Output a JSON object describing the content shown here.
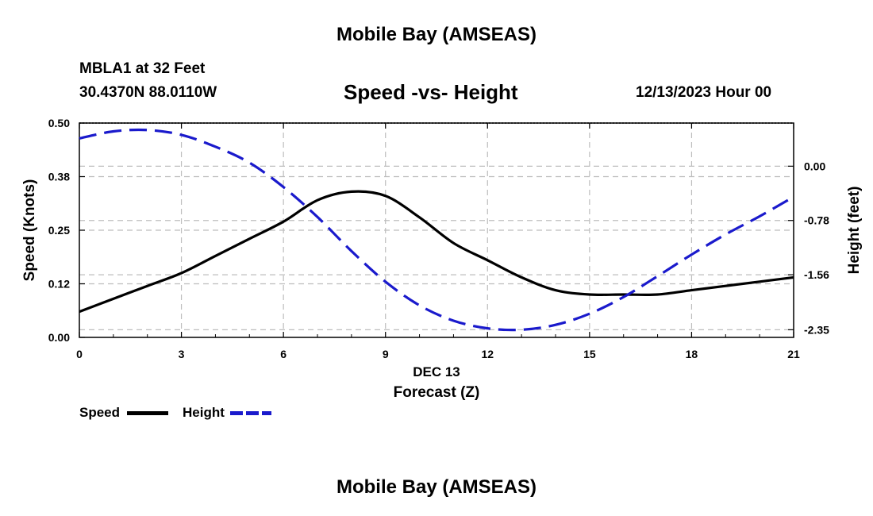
{
  "header": {
    "main_title": "Mobile Bay (AMSEAS)",
    "station": "MBLA1 at 32 Feet",
    "coords": "30.4370N  88.0110W",
    "chart_title": "Speed -vs- Height",
    "datetime": "12/13/2023 Hour 00"
  },
  "footer": {
    "title": "Mobile Bay (AMSEAS)"
  },
  "legend": {
    "items": [
      {
        "label": "Speed",
        "color": "#000000"
      },
      {
        "label": "Height",
        "color": "#1a1acc"
      }
    ]
  },
  "chart_data": {
    "type": "line",
    "title": "Speed -vs- Height",
    "xlabel": "Forecast (Z)",
    "xsublabel": "DEC 13",
    "ylabel": "Speed (Knots)",
    "y2label": "Height (feet)",
    "xlim": [
      0,
      21
    ],
    "xticks": [
      0,
      3,
      6,
      9,
      12,
      15,
      18,
      21
    ],
    "xtick_labels": [
      "0",
      "3",
      "6",
      "9",
      "12",
      "15",
      "18",
      "21"
    ],
    "ylim": [
      0,
      0.5
    ],
    "yticks": [
      0.0,
      0.125,
      0.25,
      0.375,
      0.5
    ],
    "ytick_labels": [
      "0.00",
      "0.12",
      "0.25",
      "0.38",
      "0.50"
    ],
    "y2lim": [
      -2.46,
      0.62
    ],
    "y2ticks": [
      0.0,
      -0.78,
      -1.56,
      -2.35
    ],
    "y2tick_labels": [
      "0.00",
      "-0.78",
      "-1.56",
      "-2.35"
    ],
    "grid": true,
    "series": [
      {
        "name": "Speed",
        "axis": "left",
        "style": "solid",
        "color": "#000000",
        "x": [
          0,
          1,
          2,
          3,
          4,
          5,
          6,
          7,
          8,
          9,
          10,
          11,
          12,
          13,
          14,
          15,
          16,
          17,
          18,
          19,
          20,
          21
        ],
        "values": [
          0.06,
          0.09,
          0.12,
          0.15,
          0.19,
          0.23,
          0.27,
          0.32,
          0.34,
          0.33,
          0.28,
          0.22,
          0.18,
          0.14,
          0.11,
          0.1,
          0.1,
          0.1,
          0.11,
          0.12,
          0.13,
          0.14
        ]
      },
      {
        "name": "Height",
        "axis": "right",
        "style": "dashed",
        "color": "#1a1acc",
        "x": [
          0,
          1,
          2,
          3,
          4,
          5,
          6,
          7,
          8,
          9,
          10,
          11,
          12,
          13,
          14,
          15,
          16,
          17,
          18,
          19,
          20,
          21
        ],
        "values": [
          0.4,
          0.5,
          0.52,
          0.45,
          0.28,
          0.05,
          -0.3,
          -0.73,
          -1.22,
          -1.66,
          -2.0,
          -2.22,
          -2.33,
          -2.35,
          -2.28,
          -2.12,
          -1.88,
          -1.58,
          -1.27,
          -0.98,
          -0.72,
          -0.44
        ]
      }
    ]
  }
}
